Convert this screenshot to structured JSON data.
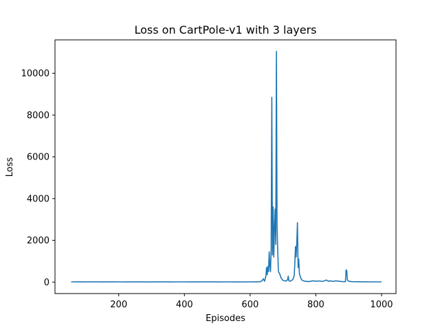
{
  "chart_data": {
    "type": "line",
    "title": "Loss on CartPole-v1 with 3 layers",
    "xlabel": "Episodes",
    "ylabel": "Loss",
    "xlim": [
      6,
      1044
    ],
    "ylim": [
      -550,
      11600
    ],
    "xticks": [
      200,
      400,
      600,
      800,
      1000
    ],
    "yticks": [
      0,
      2000,
      4000,
      6000,
      8000,
      10000
    ],
    "grid": false,
    "line_color": "#1f77b4",
    "series": [
      {
        "points": [
          [
            55,
            10
          ],
          [
            80,
            12
          ],
          [
            100,
            8
          ],
          [
            120,
            14
          ],
          [
            150,
            9
          ],
          [
            180,
            11
          ],
          [
            200,
            10
          ],
          [
            230,
            9
          ],
          [
            260,
            12
          ],
          [
            290,
            8
          ],
          [
            320,
            11
          ],
          [
            340,
            13
          ],
          [
            360,
            9
          ],
          [
            400,
            10
          ],
          [
            430,
            8
          ],
          [
            460,
            11
          ],
          [
            480,
            14
          ],
          [
            500,
            9
          ],
          [
            530,
            10
          ],
          [
            560,
            8
          ],
          [
            600,
            10
          ],
          [
            620,
            12
          ],
          [
            630,
            15
          ],
          [
            636,
            60
          ],
          [
            640,
            160
          ],
          [
            644,
            40
          ],
          [
            648,
            300
          ],
          [
            650,
            700
          ],
          [
            652,
            350
          ],
          [
            654,
            750
          ],
          [
            656,
            500
          ],
          [
            658,
            1450
          ],
          [
            660,
            800
          ],
          [
            662,
            500
          ],
          [
            664,
            1600
          ],
          [
            666,
            8850
          ],
          [
            668,
            1300
          ],
          [
            670,
            3600
          ],
          [
            672,
            1200
          ],
          [
            674,
            2600
          ],
          [
            676,
            3500
          ],
          [
            678,
            1800
          ],
          [
            680,
            11050
          ],
          [
            682,
            2700
          ],
          [
            684,
            1500
          ],
          [
            686,
            500
          ],
          [
            690,
            400
          ],
          [
            694,
            200
          ],
          [
            700,
            80
          ],
          [
            710,
            50
          ],
          [
            714,
            120
          ],
          [
            716,
            280
          ],
          [
            718,
            60
          ],
          [
            722,
            40
          ],
          [
            726,
            80
          ],
          [
            730,
            120
          ],
          [
            734,
            300
          ],
          [
            736,
            850
          ],
          [
            738,
            1700
          ],
          [
            740,
            1200
          ],
          [
            742,
            1900
          ],
          [
            744,
            2850
          ],
          [
            746,
            700
          ],
          [
            748,
            1100
          ],
          [
            750,
            400
          ],
          [
            754,
            200
          ],
          [
            758,
            90
          ],
          [
            765,
            40
          ],
          [
            780,
            25
          ],
          [
            790,
            60
          ],
          [
            800,
            40
          ],
          [
            810,
            55
          ],
          [
            820,
            30
          ],
          [
            828,
            70
          ],
          [
            832,
            100
          ],
          [
            838,
            40
          ],
          [
            845,
            60
          ],
          [
            852,
            30
          ],
          [
            860,
            60
          ],
          [
            870,
            40
          ],
          [
            880,
            25
          ],
          [
            890,
            20
          ],
          [
            892,
            580
          ],
          [
            894,
            560
          ],
          [
            896,
            100
          ],
          [
            900,
            40
          ],
          [
            910,
            20
          ],
          [
            930,
            15
          ],
          [
            950,
            12
          ],
          [
            970,
            10
          ],
          [
            1000,
            10
          ]
        ]
      }
    ]
  }
}
